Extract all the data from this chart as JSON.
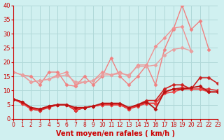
{
  "x": [
    0,
    1,
    2,
    3,
    4,
    5,
    6,
    7,
    8,
    9,
    10,
    11,
    12,
    13,
    14,
    15,
    16,
    17,
    18,
    19,
    20,
    21,
    22,
    23
  ],
  "series": [
    {
      "y": [
        16.5,
        15.5,
        15.0,
        12.0,
        16.5,
        16.5,
        12.0,
        11.5,
        15.0,
        12.0,
        15.0,
        21.5,
        15.0,
        12.0,
        15.0,
        19.0,
        12.0,
        24.5,
        31.5,
        40.0,
        31.5,
        34.5,
        24.5,
        null
      ],
      "color": "#f08080",
      "lw": 1.0,
      "marker": "D",
      "ms": 2.5
    },
    {
      "y": [
        16.5,
        15.5,
        13.0,
        13.5,
        14.0,
        15.5,
        16.5,
        12.0,
        13.0,
        13.5,
        16.5,
        15.5,
        16.5,
        15.0,
        19.0,
        19.0,
        25.5,
        28.5,
        32.0,
        32.5,
        24.0,
        null,
        null,
        null
      ],
      "color": "#f09090",
      "lw": 1.0,
      "marker": "D",
      "ms": 2.5
    },
    {
      "y": [
        16.5,
        15.5,
        13.0,
        13.5,
        14.0,
        15.0,
        15.5,
        13.0,
        13.0,
        13.5,
        15.5,
        15.5,
        16.0,
        15.5,
        18.5,
        18.5,
        19.0,
        22.5,
        24.5,
        25.0,
        24.0,
        null,
        null,
        null
      ],
      "color": "#e8a0a0",
      "lw": 1.0,
      "marker": "D",
      "ms": 2.5
    },
    {
      "y": [
        7.0,
        6.0,
        3.5,
        3.0,
        4.5,
        5.0,
        5.0,
        3.0,
        4.0,
        4.5,
        5.0,
        5.5,
        5.0,
        3.5,
        5.0,
        6.5,
        6.5,
        10.5,
        12.0,
        12.0,
        10.5,
        14.5,
        14.5,
        12.5
      ],
      "color": "#cc2222",
      "lw": 1.2,
      "marker": "D",
      "ms": 2.5
    },
    {
      "y": [
        7.0,
        5.5,
        3.5,
        3.0,
        4.0,
        5.0,
        5.0,
        3.0,
        4.0,
        4.5,
        5.0,
        5.0,
        5.0,
        3.5,
        4.5,
        5.5,
        5.5,
        9.5,
        10.5,
        11.0,
        10.5,
        10.5,
        10.5,
        10.0
      ],
      "color": "#dd3333",
      "lw": 1.2,
      "marker": "D",
      "ms": 2.5
    },
    {
      "y": [
        7.0,
        5.5,
        3.5,
        3.5,
        4.5,
        5.0,
        5.0,
        3.5,
        4.0,
        4.5,
        5.0,
        5.0,
        5.0,
        3.5,
        5.0,
        5.5,
        5.5,
        9.0,
        9.5,
        10.5,
        10.5,
        10.5,
        9.5,
        9.5
      ],
      "color": "#ee4444",
      "lw": 1.2,
      "marker": "D",
      "ms": 2.5
    },
    {
      "y": [
        7.0,
        6.0,
        4.0,
        3.5,
        4.5,
        5.0,
        5.0,
        4.0,
        4.0,
        4.5,
        5.5,
        5.5,
        5.5,
        4.0,
        5.0,
        6.0,
        3.5,
        9.5,
        10.5,
        10.5,
        11.0,
        11.5,
        9.5,
        9.5
      ],
      "color": "#bb1111",
      "lw": 1.3,
      "marker": "D",
      "ms": 2.5
    }
  ],
  "xlabel": "Vent moyen/en rafales ( km/h )",
  "ylabel": "",
  "xlim": [
    0,
    23
  ],
  "ylim": [
    0,
    40
  ],
  "yticks": [
    0,
    5,
    10,
    15,
    20,
    25,
    30,
    35,
    40
  ],
  "xticks": [
    0,
    1,
    2,
    3,
    4,
    5,
    6,
    7,
    8,
    9,
    10,
    11,
    12,
    13,
    14,
    15,
    16,
    17,
    18,
    19,
    20,
    21,
    22,
    23
  ],
  "bg_color": "#d0f0f0",
  "grid_color": "#b0d8d8",
  "tick_color": "#cc0000",
  "label_color": "#cc0000",
  "xlabel_fontsize": 7,
  "ytick_fontsize": 6,
  "xtick_fontsize": 5.5
}
